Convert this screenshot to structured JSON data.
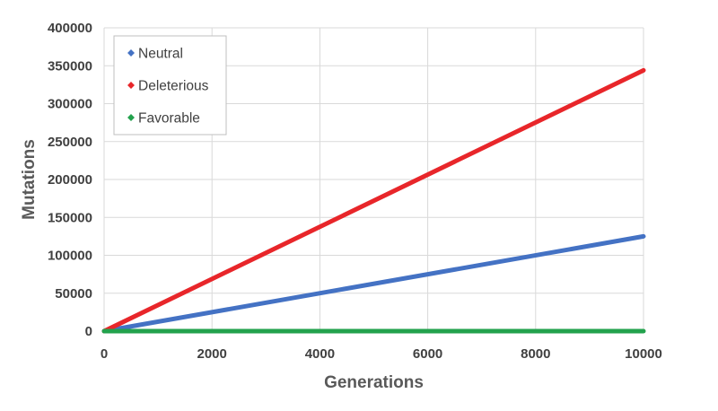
{
  "chart_data": {
    "type": "line",
    "title": "",
    "xlabel": "Generations",
    "ylabel": "Mutations",
    "xlim": [
      0,
      10000
    ],
    "ylim": [
      0,
      400000
    ],
    "xticks": [
      0,
      2000,
      4000,
      6000,
      8000,
      10000
    ],
    "yticks": [
      0,
      50000,
      100000,
      150000,
      200000,
      250000,
      300000,
      350000,
      400000
    ],
    "grid": true,
    "legend_position": "top-left",
    "series": [
      {
        "name": "Neutral",
        "color": "#4472C4",
        "x": [
          0,
          10000
        ],
        "y": [
          0,
          125000
        ]
      },
      {
        "name": "Deleterious",
        "color": "#E8262A",
        "x": [
          0,
          10000
        ],
        "y": [
          0,
          344000
        ]
      },
      {
        "name": "Favorable",
        "color": "#23A24D",
        "x": [
          0,
          10000
        ],
        "y": [
          0,
          0
        ]
      }
    ]
  }
}
